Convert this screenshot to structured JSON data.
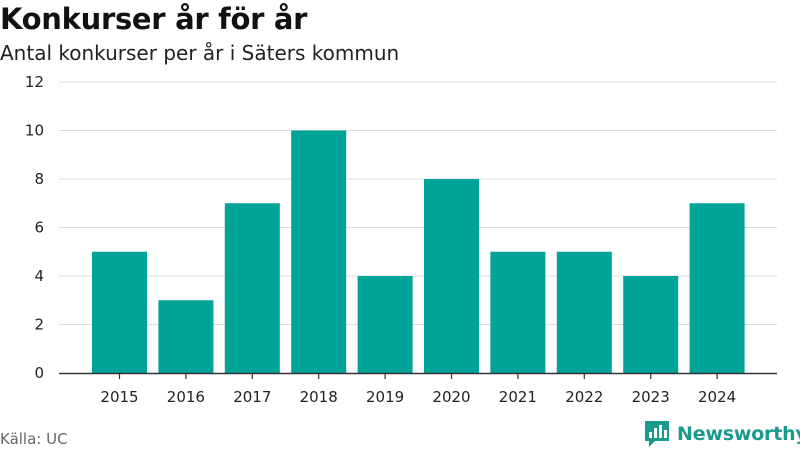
{
  "chart_data": {
    "type": "bar",
    "title": "Konkurser år för år",
    "subtitle": "Antal konkurser per år i Säters kommun",
    "categories": [
      "2015",
      "2016",
      "2017",
      "2018",
      "2019",
      "2020",
      "2021",
      "2022",
      "2023",
      "2024"
    ],
    "values": [
      5,
      3,
      7,
      10,
      4,
      8,
      5,
      5,
      4,
      7
    ],
    "ylim": [
      0,
      12
    ],
    "yticks": [
      0,
      2,
      4,
      6,
      8,
      10,
      12
    ],
    "xlabel": "",
    "ylabel": "",
    "grid": true,
    "bar_color": "#00a398",
    "grid_color": "#dddddd"
  },
  "footer": {
    "source": "Källa: UC",
    "brand": "Newsworthy",
    "brand_icon": "newsworthy-logo-icon"
  },
  "colors": {
    "brand": "#1a9a8e"
  }
}
